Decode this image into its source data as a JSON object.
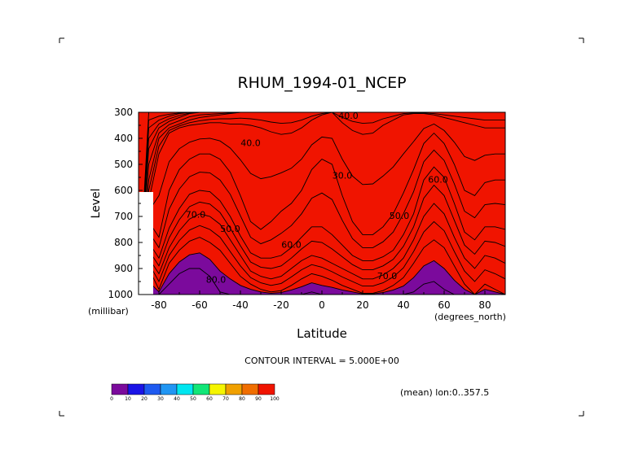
{
  "chart_data": {
    "type": "heatmap",
    "title": "RHUM_1994-01_NCEP",
    "xlabel": "Latitude",
    "ylabel": "Level",
    "x_units": "(degrees_north)",
    "y_units": "(millibar)",
    "xlim": [
      -90,
      90
    ],
    "ylim": [
      1000,
      300
    ],
    "x_ticks": [
      -80,
      -60,
      -40,
      -20,
      0,
      20,
      40,
      60,
      80
    ],
    "x_tick_labels": [
      "-80",
      "-60",
      "-40",
      "-20",
      "0",
      "20",
      "40",
      "60",
      "80"
    ],
    "y_ticks": [
      300,
      400,
      500,
      600,
      700,
      800,
      900,
      1000
    ],
    "y_tick_labels": [
      "300",
      "400",
      "500",
      "600",
      "700",
      "800",
      "900",
      "1000"
    ],
    "contour_interval_text": "CONTOUR INTERVAL = 5.000E+00",
    "subset_text": "(mean) lon:0..357.5",
    "legend": {
      "levels": [
        0,
        10,
        20,
        30,
        40,
        50,
        60,
        70,
        80,
        90,
        100
      ],
      "labels": [
        "0",
        "10",
        "20",
        "30",
        "40",
        "50",
        "60",
        "70",
        "80",
        "90",
        "100"
      ],
      "colors": [
        "#7b0a9c",
        "#1a14e6",
        "#1e5af0",
        "#2196f3",
        "#00e6f0",
        "#12e678",
        "#f5f500",
        "#f0a000",
        "#f06e00",
        "#f01400"
      ]
    },
    "contour_labels": [
      {
        "text": "40.0",
        "x": -35,
        "y": 430
      },
      {
        "text": "40.0",
        "x": 13,
        "y": 325
      },
      {
        "text": "30.0",
        "x": 10,
        "y": 555
      },
      {
        "text": "50.0",
        "x": -45,
        "y": 760
      },
      {
        "text": "50.0",
        "x": 38,
        "y": 710
      },
      {
        "text": "60.0",
        "x": -15,
        "y": 820
      },
      {
        "text": "60.0",
        "x": 57,
        "y": 570
      },
      {
        "text": "70.0",
        "x": -62,
        "y": 705
      },
      {
        "text": "70.0",
        "x": 32,
        "y": 940
      },
      {
        "text": "80.0",
        "x": -52,
        "y": 955
      }
    ],
    "profile": {
      "latitudes": [
        -90,
        -85,
        -80,
        -75,
        -70,
        -65,
        -60,
        -55,
        -50,
        -45,
        -40,
        -35,
        -30,
        -25,
        -20,
        -15,
        -10,
        -5,
        0,
        5,
        10,
        15,
        20,
        25,
        30,
        35,
        40,
        45,
        50,
        55,
        60,
        65,
        70,
        75,
        80,
        85,
        90
      ],
      "center_levels": [
        [
          1000,
          1000,
          1000,
          1000,
          1000,
          1000,
          1000,
          1000,
          1000,
          1000
        ],
        [
          300,
          360,
          440,
          560,
          640,
          720,
          800,
          860,
          900,
          1000
        ],
        [
          300,
          330,
          360,
          400,
          460,
          780,
          860,
          920,
          980,
          1000
        ],
        [
          300,
          315,
          335,
          360,
          380,
          600,
          745,
          820,
          880,
          960
        ],
        [
          300,
          305,
          320,
          345,
          360,
          520,
          670,
          755,
          830,
          920
        ],
        [
          300,
          300,
          305,
          330,
          350,
          480,
          615,
          710,
          795,
          900
        ],
        [
          300,
          300,
          300,
          320,
          345,
          460,
          600,
          690,
          780,
          900
        ],
        [
          300,
          300,
          300,
          315,
          340,
          460,
          605,
          700,
          800,
          930
        ],
        [
          300,
          300,
          300,
          310,
          340,
          480,
          640,
          730,
          830,
          990
        ],
        [
          300,
          300,
          300,
          305,
          345,
          530,
          700,
          790,
          880,
          1000
        ],
        [
          300,
          300,
          300,
          300,
          345,
          620,
          775,
          850,
          930,
          1000
        ],
        [
          300,
          300,
          300,
          300,
          350,
          720,
          840,
          910,
          960,
          1000
        ],
        [
          300,
          300,
          300,
          300,
          360,
          750,
          860,
          930,
          980,
          1000
        ],
        [
          300,
          300,
          300,
          300,
          375,
          720,
          860,
          940,
          990,
          1000
        ],
        [
          300,
          300,
          300,
          300,
          385,
          680,
          850,
          930,
          985,
          1000
        ],
        [
          300,
          300,
          300,
          300,
          380,
          650,
          820,
          900,
          965,
          1000
        ],
        [
          300,
          300,
          300,
          300,
          360,
          600,
          780,
          870,
          940,
          1000
        ],
        [
          300,
          300,
          300,
          300,
          330,
          520,
          740,
          850,
          920,
          990
        ],
        [
          300,
          300,
          300,
          300,
          310,
          480,
          740,
          860,
          930,
          1000
        ],
        [
          300,
          300,
          300,
          300,
          300,
          500,
          770,
          880,
          945,
          1000
        ],
        [
          300,
          300,
          300,
          300,
          340,
          620,
          810,
          900,
          965,
          1000
        ],
        [
          300,
          300,
          300,
          300,
          370,
          720,
          850,
          920,
          980,
          1000
        ],
        [
          300,
          300,
          300,
          300,
          385,
          770,
          870,
          940,
          995,
          1000
        ],
        [
          300,
          300,
          300,
          300,
          380,
          770,
          870,
          940,
          995,
          1000
        ],
        [
          300,
          300,
          300,
          300,
          350,
          740,
          855,
          925,
          985,
          1000
        ],
        [
          300,
          300,
          300,
          300,
          330,
          690,
          830,
          900,
          965,
          1000
        ],
        [
          300,
          300,
          300,
          300,
          310,
          610,
          770,
          860,
          935,
          1000
        ],
        [
          300,
          300,
          300,
          300,
          305,
          520,
          690,
          790,
          880,
          990
        ],
        [
          300,
          300,
          300,
          300,
          305,
          420,
          560,
          700,
          820,
          960
        ],
        [
          300,
          300,
          300,
          300,
          310,
          380,
          510,
          650,
          790,
          950
        ],
        [
          300,
          300,
          300,
          300,
          320,
          420,
          550,
          690,
          820,
          980
        ],
        [
          300,
          300,
          300,
          300,
          330,
          500,
          650,
          780,
          890,
          1000
        ],
        [
          300,
          300,
          300,
          300,
          340,
          600,
          760,
          860,
          960,
          1000
        ],
        [
          300,
          300,
          300,
          300,
          350,
          620,
          790,
          900,
          1000,
          1000
        ],
        [
          300,
          300,
          300,
          300,
          360,
          570,
          740,
          850,
          960,
          1000
        ],
        [
          300,
          300,
          300,
          300,
          360,
          560,
          740,
          860,
          980,
          1000
        ],
        [
          300,
          300,
          300,
          300,
          360,
          560,
          750,
          880,
          1000,
          1000
        ]
      ]
    }
  }
}
